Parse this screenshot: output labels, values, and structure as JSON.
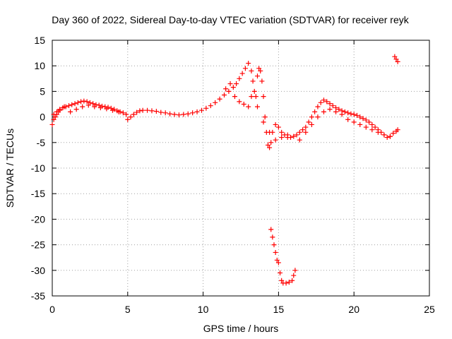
{
  "chart_data": {
    "type": "scatter",
    "title": "Day 360 of 2022, Sidereal Day-to-day VTEC variation (SDTVAR) for receiver reyk",
    "xlabel": "GPS time / hours",
    "ylabel": "SDTVAR / TECUs",
    "xlim": [
      0,
      25
    ],
    "ylim": [
      -35,
      15
    ],
    "xticks": [
      "0",
      "5",
      "10",
      "15",
      "20",
      "25"
    ],
    "yticks": [
      "15",
      "10",
      "5",
      "0",
      "-5",
      "-10",
      "-15",
      "-20",
      "-25",
      "-30",
      "-35"
    ],
    "grid": true,
    "marker": "+",
    "color": "#ff0000",
    "series": [
      {
        "name": "SDTVAR",
        "x": [
          0.0,
          0.1,
          0.2,
          0.3,
          0.4,
          0.5,
          0.7,
          0.9,
          1.1,
          1.3,
          1.5,
          1.7,
          1.9,
          2.1,
          2.3,
          2.5,
          2.7,
          2.9,
          3.1,
          3.3,
          3.5,
          3.7,
          3.9,
          4.1,
          4.3,
          4.5,
          4.7,
          4.9,
          5.0,
          5.2,
          5.4,
          5.6,
          5.8,
          6.0,
          6.3,
          6.6,
          6.9,
          7.2,
          7.5,
          7.8,
          8.1,
          8.4,
          8.7,
          9.0,
          9.3,
          9.6,
          9.9,
          10.2,
          10.5,
          10.8,
          11.1,
          11.4,
          11.7,
          12.0,
          12.2,
          12.4,
          12.6,
          12.8,
          13.0,
          13.2,
          13.3,
          13.4,
          13.5,
          13.6,
          13.7,
          13.8,
          13.9,
          14.0,
          14.1,
          14.2,
          14.3,
          14.4,
          14.5,
          14.6,
          14.8,
          15.0,
          15.2,
          15.4,
          15.6,
          15.8,
          16.0,
          16.2,
          16.4,
          16.6,
          16.8,
          17.0,
          17.2,
          17.4,
          17.6,
          17.8,
          18.0,
          18.2,
          18.4,
          18.6,
          18.8,
          19.0,
          19.2,
          19.4,
          19.6,
          19.8,
          20.0,
          20.2,
          20.4,
          20.6,
          20.8,
          21.0,
          21.2,
          21.4,
          21.6,
          21.8,
          22.0,
          22.2,
          22.4,
          22.6,
          22.8,
          22.9,
          0.1,
          0.3,
          0.5,
          0.8,
          1.2,
          1.6,
          2.0,
          2.4,
          2.8,
          3.2,
          3.6,
          4.0,
          4.4,
          11.5,
          11.8,
          12.1,
          12.4,
          12.7,
          13.0,
          13.2,
          13.6,
          14.0,
          14.4,
          14.8,
          15.2,
          15.6,
          16.4,
          16.8,
          17.2,
          17.6,
          18.0,
          18.4,
          18.8,
          19.2,
          19.6,
          20.0,
          20.4,
          20.8,
          21.2,
          21.6,
          22.0,
          22.4,
          14.5,
          14.6,
          14.7,
          14.8,
          14.9,
          15.0,
          15.1,
          15.2,
          15.3,
          15.5,
          15.7,
          15.9,
          16.0,
          16.1,
          22.7,
          22.8,
          22.9
        ],
        "y": [
          -1.5,
          -0.5,
          0.0,
          0.5,
          1.0,
          1.3,
          1.8,
          2.0,
          2.2,
          2.4,
          2.6,
          2.8,
          3.0,
          3.1,
          3.0,
          2.8,
          2.6,
          2.4,
          2.3,
          2.1,
          2.0,
          1.9,
          1.7,
          1.5,
          1.2,
          1.0,
          0.8,
          0.5,
          -0.5,
          0.0,
          0.5,
          0.9,
          1.2,
          1.3,
          1.3,
          1.2,
          1.1,
          0.9,
          0.8,
          0.6,
          0.5,
          0.4,
          0.5,
          0.6,
          0.8,
          1.0,
          1.3,
          1.7,
          2.2,
          2.8,
          3.5,
          4.3,
          5.0,
          5.8,
          6.5,
          7.5,
          8.5,
          9.5,
          10.5,
          9.0,
          7.0,
          5.0,
          4.0,
          8.0,
          9.5,
          9.0,
          7.0,
          4.0,
          0.0,
          -3.0,
          -5.5,
          -6.0,
          -5.0,
          -3.0,
          -1.5,
          -2.0,
          -3.0,
          -3.5,
          -4.0,
          -4.0,
          -3.8,
          -3.5,
          -3.0,
          -2.5,
          -2.0,
          -1.0,
          0.0,
          1.0,
          2.0,
          2.8,
          3.3,
          3.0,
          2.6,
          2.2,
          1.8,
          1.5,
          1.2,
          1.0,
          0.8,
          0.6,
          0.5,
          0.3,
          0.0,
          -0.3,
          -0.6,
          -1.0,
          -1.5,
          -2.0,
          -2.5,
          -3.0,
          -3.5,
          -4.0,
          -3.8,
          -3.2,
          -2.8,
          -2.5,
          0.5,
          1.0,
          1.5,
          2.0,
          1.0,
          1.5,
          2.0,
          2.3,
          2.0,
          1.8,
          1.6,
          1.3,
          1.0,
          5.5,
          6.5,
          4.0,
          3.0,
          2.5,
          2.0,
          4.0,
          2.0,
          -1.0,
          -3.0,
          -4.5,
          -4.0,
          -3.5,
          -4.5,
          -3.0,
          -1.5,
          0.0,
          1.0,
          1.5,
          1.0,
          0.5,
          -0.5,
          -1.0,
          -1.5,
          -2.0,
          -2.5,
          -3.0,
          -3.5,
          -3.8,
          -22.0,
          -23.5,
          -25.0,
          -26.5,
          -28.0,
          -28.5,
          -30.5,
          -32.0,
          -32.5,
          -32.5,
          -32.3,
          -32.0,
          -31.0,
          -30.0,
          11.8,
          11.3,
          10.8
        ]
      }
    ]
  }
}
